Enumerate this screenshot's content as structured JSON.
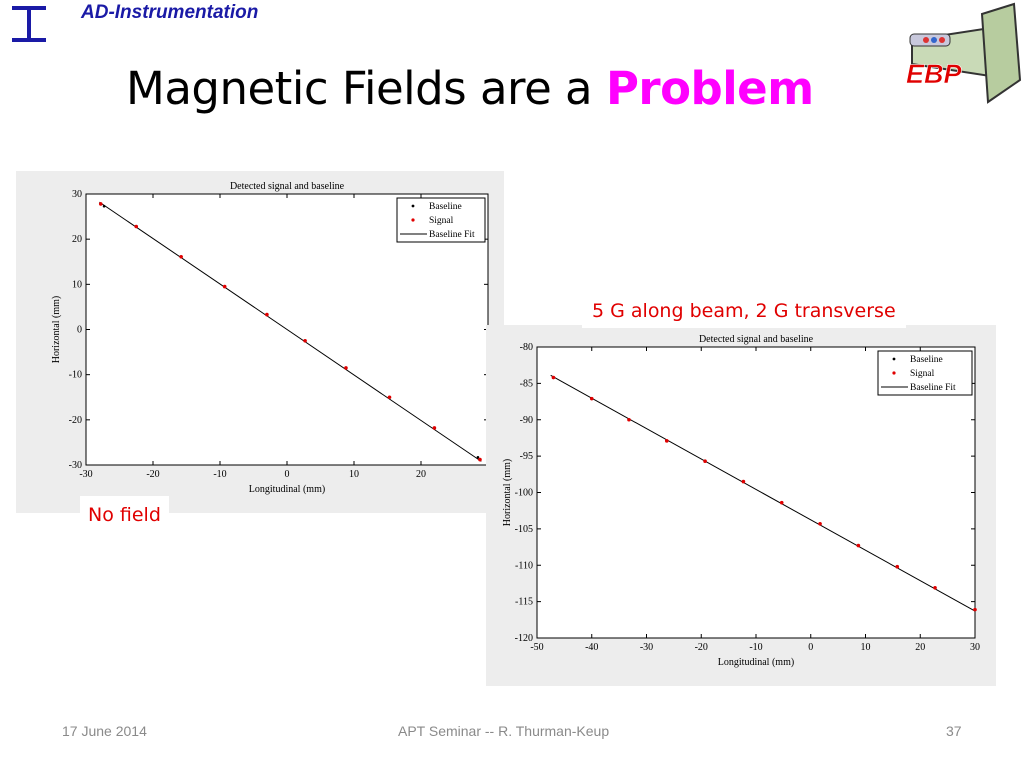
{
  "header": {
    "dept": "AD-Instrumentation"
  },
  "slide": {
    "title_main": "Magnetic Fields are a",
    "title_highlight": "Problem"
  },
  "logo": {
    "text": "EBP"
  },
  "callouts": {
    "no_field": "No field",
    "with_field": "5 G along beam, 2 G transverse"
  },
  "footer": {
    "date": "17 June 2014",
    "center": "APT Seminar -- R. Thurman-Keup",
    "page": "37"
  },
  "colors": {
    "title_highlight": "#ff00ff",
    "header": "#1a1aa6",
    "callout": "#e00000",
    "signal": "#e00000"
  },
  "chart_data": [
    {
      "type": "scatter",
      "title": "Detected signal and baseline",
      "xlabel": "Longitudinal (mm)",
      "ylabel": "Horizontal (mm)",
      "xlim": [
        -30,
        30
      ],
      "ylim": [
        -30,
        30
      ],
      "xticks": [
        -30,
        -20,
        -10,
        0,
        10,
        20
      ],
      "yticks": [
        30,
        20,
        10,
        0,
        -10,
        -20,
        -30
      ],
      "legend": [
        "Baseline",
        "Signal",
        "Baseline Fit"
      ],
      "legend_position": "top-right",
      "series": [
        {
          "name": "Baseline",
          "color": "#000000",
          "x": [
            -27.3,
            -22.5,
            -15.8,
            -9.3,
            -3.0,
            2.7,
            8.8,
            15.3,
            22.0,
            28.5
          ],
          "y": [
            27.3,
            22.8,
            16.1,
            9.5,
            3.3,
            -2.5,
            -8.5,
            -15.0,
            -21.8,
            -28.3
          ]
        },
        {
          "name": "Signal",
          "color": "#e00000",
          "x": [
            -27.8,
            -22.5,
            -15.8,
            -9.3,
            -3.0,
            2.7,
            8.8,
            15.3,
            22.0,
            28.8
          ],
          "y": [
            27.8,
            22.8,
            16.1,
            9.5,
            3.3,
            -2.5,
            -8.5,
            -15.0,
            -21.8,
            -28.8
          ]
        },
        {
          "name": "Baseline Fit",
          "color": "#000000",
          "x": [
            -28,
            29
          ],
          "y": [
            28.2,
            -29.2
          ]
        }
      ]
    },
    {
      "type": "scatter",
      "title": "Detected signal and baseline",
      "xlabel": "Longitudinal (mm)",
      "ylabel": "Horizontal (mm)",
      "xlim": [
        -50,
        30
      ],
      "ylim": [
        -120,
        -80
      ],
      "xticks": [
        -50,
        -40,
        -30,
        -20,
        -10,
        0,
        10,
        20,
        30
      ],
      "yticks": [
        -80,
        -85,
        -90,
        -95,
        -100,
        -105,
        -110,
        -115,
        -120
      ],
      "legend": [
        "Baseline",
        "Signal",
        "Baseline Fit"
      ],
      "legend_position": "top-right",
      "series": [
        {
          "name": "Baseline",
          "color": "#000000",
          "x": [
            -47.0,
            -40.0,
            -33.2,
            -26.3,
            -19.3,
            -12.3,
            -5.3,
            1.7,
            8.7,
            15.8,
            22.7,
            30.0
          ],
          "y": [
            -84.2,
            -87.1,
            -90.0,
            -92.9,
            -95.7,
            -98.5,
            -101.4,
            -104.3,
            -107.3,
            -110.2,
            -113.1,
            -116.1
          ]
        },
        {
          "name": "Signal",
          "color": "#e00000",
          "x": [
            -47.0,
            -40.0,
            -33.2,
            -26.3,
            -19.3,
            -12.3,
            -5.3,
            1.7,
            8.7,
            15.8,
            22.7,
            30.0
          ],
          "y": [
            -84.2,
            -87.1,
            -90.0,
            -92.9,
            -95.7,
            -98.5,
            -101.4,
            -104.3,
            -107.3,
            -110.2,
            -113.1,
            -116.1
          ]
        },
        {
          "name": "Baseline Fit",
          "color": "#000000",
          "x": [
            -47.5,
            30
          ],
          "y": [
            -83.9,
            -116.3
          ]
        }
      ]
    }
  ]
}
